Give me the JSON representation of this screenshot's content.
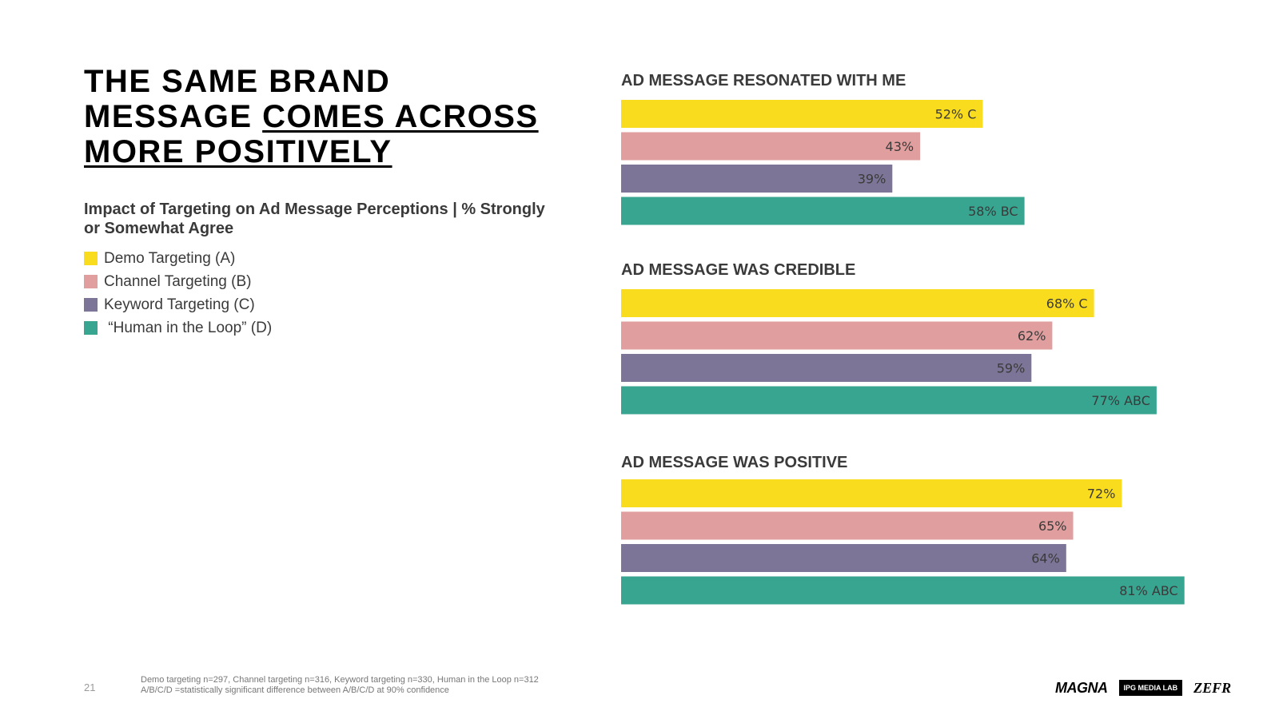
{
  "title": {
    "line1": "THE SAME BRAND",
    "line2_plain": "MESSAGE ",
    "line2_underlined": "COMES ACROSS",
    "line3_underlined": "MORE POSITIVELY"
  },
  "subtitle": "Impact of Targeting on Ad Message Perceptions | % Strongly or Somewhat Agree",
  "legend": [
    {
      "label": "Demo Targeting (A)",
      "color": "#FADC1E"
    },
    {
      "label": "Channel Targeting (B)",
      "color": "#E09E9E"
    },
    {
      "label": "Keyword Targeting (C)",
      "color": "#7C7597"
    },
    {
      "label": " “Human in the Loop” (D)",
      "color": "#38A591"
    }
  ],
  "chart_data": [
    {
      "type": "bar",
      "orientation": "horizontal",
      "title": "AD MESSAGE RESONATED WITH ME",
      "xlim": [
        0,
        100
      ],
      "series": [
        {
          "name": "Demo Targeting (A)",
          "value": 52,
          "label": "52% C"
        },
        {
          "name": "Channel Targeting (B)",
          "value": 43,
          "label": "43%"
        },
        {
          "name": "Keyword Targeting (C)",
          "value": 39,
          "label": "39%"
        },
        {
          "name": "“Human in the Loop” (D)",
          "value": 58,
          "label": "58% BC"
        }
      ]
    },
    {
      "type": "bar",
      "orientation": "horizontal",
      "title": "AD MESSAGE WAS CREDIBLE",
      "xlim": [
        0,
        100
      ],
      "series": [
        {
          "name": "Demo Targeting (A)",
          "value": 68,
          "label": "68% C"
        },
        {
          "name": "Channel Targeting (B)",
          "value": 62,
          "label": "62%"
        },
        {
          "name": "Keyword Targeting (C)",
          "value": 59,
          "label": "59%"
        },
        {
          "name": "“Human in the Loop” (D)",
          "value": 77,
          "label": "77% ABC"
        }
      ]
    },
    {
      "type": "bar",
      "orientation": "horizontal",
      "title": "AD MESSAGE WAS POSITIVE",
      "xlim": [
        0,
        100
      ],
      "series": [
        {
          "name": "Demo Targeting (A)",
          "value": 72,
          "label": "72%"
        },
        {
          "name": "Channel Targeting (B)",
          "value": 65,
          "label": "65%"
        },
        {
          "name": "Keyword Targeting (C)",
          "value": 64,
          "label": "64%"
        },
        {
          "name": "“Human in the Loop” (D)",
          "value": 81,
          "label": "81% ABC"
        }
      ]
    }
  ],
  "page_number": "21",
  "footnote": {
    "line1": "Demo targeting n=297, Channel targeting n=316, Keyword targeting n=330, Human in the Loop n=312",
    "line2": "A/B/C/D =statistically significant difference between A/B/C/D at 90% confidence"
  },
  "logos": {
    "magna": "MAGNA",
    "ipg": "IPG MEDIA LAB",
    "zefr": "ZEFR"
  }
}
